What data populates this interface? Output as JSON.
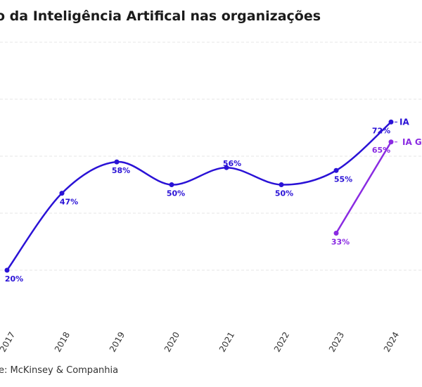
{
  "chart_data": {
    "type": "line",
    "title": "o da Inteligência Artifical nas organizações",
    "source": "e: McKinsey & Companhia",
    "categories": [
      "2017",
      "2018",
      "2019",
      "2020",
      "2021",
      "2022",
      "2023",
      "2024"
    ],
    "ylim": [
      0,
      100
    ],
    "grid": true,
    "series": [
      {
        "name": "IA",
        "color": "#2a12d6",
        "label_color": "#2a12d6",
        "values": [
          20,
          47,
          58,
          50,
          56,
          50,
          55,
          72
        ],
        "labels": [
          "20%",
          "47%",
          "58%",
          "50%",
          "56%",
          "50%",
          "55%",
          "72%"
        ]
      },
      {
        "name": "IA Gen",
        "color": "#8a2be2",
        "label_color": "#8a2be2",
        "values": [
          null,
          null,
          null,
          null,
          null,
          null,
          33,
          65
        ],
        "labels": [
          "",
          "",
          "",
          "",
          "",
          "",
          "33%",
          "65%"
        ]
      }
    ]
  }
}
